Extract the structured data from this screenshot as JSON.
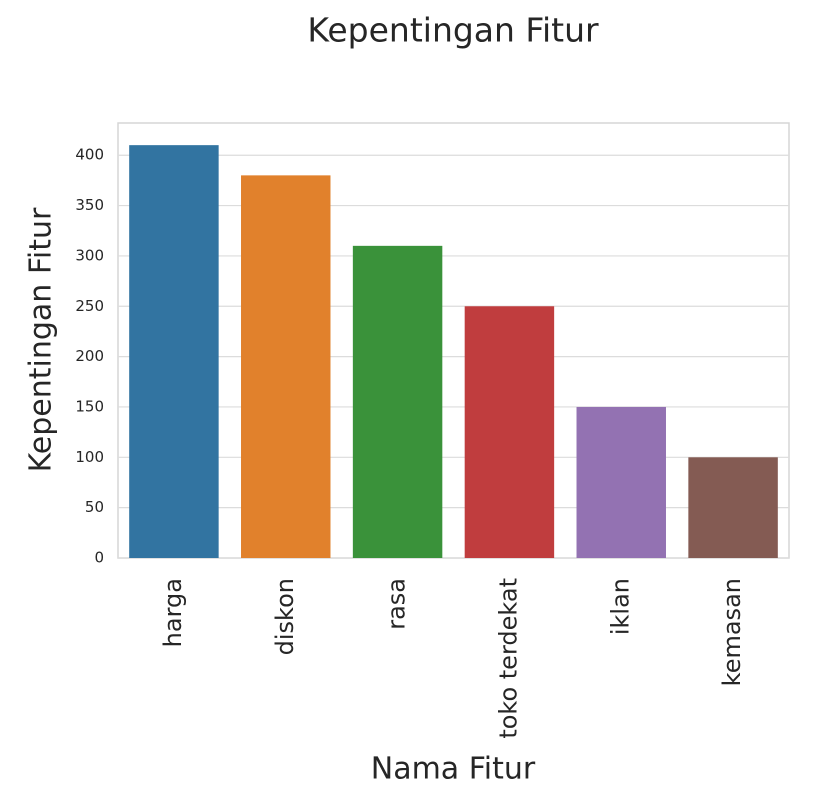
{
  "chart_data": {
    "type": "bar",
    "title": "Kepentingan Fitur",
    "x_label": "Nama Fitur",
    "y_label": "Kepentingan Fitur",
    "categories": [
      "harga",
      "diskon",
      "rasa",
      "toko terdekat",
      "iklan",
      "kemasan"
    ],
    "values": [
      410,
      380,
      310,
      250,
      150,
      100
    ],
    "colors": [
      "#3274a1",
      "#e1812c",
      "#3a923a",
      "#c03d3e",
      "#9372b2",
      "#845b53"
    ],
    "ylim": [
      0,
      432
    ],
    "yticks": [
      0,
      50,
      100,
      150,
      200,
      250,
      300,
      350,
      400
    ],
    "grid": true
  }
}
